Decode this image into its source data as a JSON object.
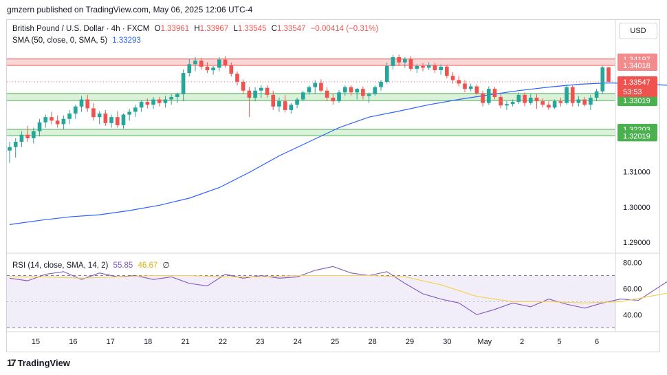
{
  "publisher_line": "gmzern published on TradingView.com, May 06, 2025 12:06 UTC-4",
  "legend": {
    "symbol": "British Pound / U.S. Dollar · 4h · FXCM",
    "o_label": "O",
    "o": "1.33961",
    "h_label": "H",
    "h": "1.33967",
    "l_label": "L",
    "l": "1.33545",
    "c_label": "C",
    "c": "1.33547",
    "change": "−0.00414 (−0.31%)",
    "sma_label": "SMA (50, close, 0, SMA, 5)",
    "sma_value": "1.33293",
    "rsi_label": "RSI (14, close, SMA, 14, 2)",
    "rsi_value": "55.85",
    "rsi_ma_value": "46.67",
    "rsi_extra": "∅"
  },
  "currency_button": "USD",
  "brand": "TradingView",
  "colors": {
    "up": "#26a69a",
    "down": "#ef5350",
    "sma": "#2962ff",
    "rsi": "#7e57c2",
    "rsi_ma": "#f7d046",
    "resistance_zone": "#f8c9c9",
    "support_zone": "#cfeccd"
  },
  "price_badges": {
    "resistance_top": "1.34197",
    "resistance_bottom": "1.34018",
    "current_price": "1.33547",
    "countdown": "53:53",
    "support_top": "1.33219",
    "support_bottom": "1.33019",
    "support2_top": "1.32203",
    "support2_bottom": "1.32019"
  },
  "chart_data": {
    "type": "candlestick",
    "ylim": [
      1.2865,
      1.347
    ],
    "y_ticks": [
      "1.31000",
      "1.30000",
      "1.29000"
    ],
    "y_tick_values": [
      1.31,
      1.3,
      1.29
    ],
    "x_tick_labels": [
      "15",
      "16",
      "17",
      "18",
      "21",
      "22",
      "23",
      "24",
      "25",
      "28",
      "29",
      "30",
      "May",
      "2",
      "5",
      "6"
    ],
    "zones": [
      {
        "from": 1.34018,
        "to": 1.34197,
        "color": "resistance"
      },
      {
        "from": 1.33019,
        "to": 1.33219,
        "color": "support"
      },
      {
        "from": 1.32019,
        "to": 1.32203,
        "color": "support"
      }
    ],
    "candles": [
      [
        1.316,
        1.3185,
        1.3125,
        1.317
      ],
      [
        1.317,
        1.3195,
        1.314,
        1.3185
      ],
      [
        1.3185,
        1.3215,
        1.317,
        1.3205
      ],
      [
        1.3205,
        1.323,
        1.3185,
        1.3195
      ],
      [
        1.3195,
        1.3225,
        1.318,
        1.3215
      ],
      [
        1.3215,
        1.325,
        1.32,
        1.324
      ],
      [
        1.324,
        1.3262,
        1.3225,
        1.3255
      ],
      [
        1.3255,
        1.327,
        1.3235,
        1.3245
      ],
      [
        1.3245,
        1.326,
        1.3225,
        1.3235
      ],
      [
        1.3235,
        1.326,
        1.322,
        1.325
      ],
      [
        1.325,
        1.3275,
        1.3235,
        1.3265
      ],
      [
        1.3265,
        1.329,
        1.325,
        1.3285
      ],
      [
        1.3285,
        1.3315,
        1.327,
        1.3305
      ],
      [
        1.3305,
        1.3318,
        1.327,
        1.328
      ],
      [
        1.328,
        1.3295,
        1.3245,
        1.3255
      ],
      [
        1.3255,
        1.3272,
        1.3235,
        1.3265
      ],
      [
        1.3265,
        1.3275,
        1.323,
        1.3238
      ],
      [
        1.3238,
        1.3262,
        1.3225,
        1.3255
      ],
      [
        1.3255,
        1.3272,
        1.3225,
        1.3232
      ],
      [
        1.3232,
        1.3265,
        1.3222,
        1.3262
      ],
      [
        1.3262,
        1.3278,
        1.3245,
        1.327
      ],
      [
        1.327,
        1.329,
        1.3255,
        1.3282
      ],
      [
        1.3282,
        1.3302,
        1.327,
        1.3298
      ],
      [
        1.3298,
        1.3308,
        1.328,
        1.329
      ],
      [
        1.329,
        1.3312,
        1.3278,
        1.3305
      ],
      [
        1.3305,
        1.3312,
        1.3285,
        1.3295
      ],
      [
        1.3295,
        1.3315,
        1.3282,
        1.3305
      ],
      [
        1.3305,
        1.332,
        1.329,
        1.3312
      ],
      [
        1.3312,
        1.3325,
        1.3295,
        1.332
      ],
      [
        1.332,
        1.339,
        1.33,
        1.338
      ],
      [
        1.338,
        1.342,
        1.337,
        1.3405
      ],
      [
        1.3405,
        1.3425,
        1.3385,
        1.3415
      ],
      [
        1.3415,
        1.3423,
        1.339,
        1.3398
      ],
      [
        1.3398,
        1.341,
        1.338,
        1.3388
      ],
      [
        1.3388,
        1.34,
        1.3375,
        1.3395
      ],
      [
        1.3395,
        1.3425,
        1.3385,
        1.3418
      ],
      [
        1.3418,
        1.3428,
        1.3395,
        1.3402
      ],
      [
        1.3402,
        1.341,
        1.337,
        1.3378
      ],
      [
        1.3378,
        1.3385,
        1.3345,
        1.3355
      ],
      [
        1.3355,
        1.3362,
        1.332,
        1.333
      ],
      [
        1.333,
        1.334,
        1.3255,
        1.331
      ],
      [
        1.331,
        1.334,
        1.33,
        1.333
      ],
      [
        1.333,
        1.3345,
        1.331,
        1.3338
      ],
      [
        1.3338,
        1.3345,
        1.331,
        1.3318
      ],
      [
        1.3318,
        1.333,
        1.3275,
        1.3285
      ],
      [
        1.3285,
        1.331,
        1.327,
        1.33
      ],
      [
        1.33,
        1.3318,
        1.3268,
        1.3275
      ],
      [
        1.3275,
        1.3295,
        1.3265,
        1.329
      ],
      [
        1.329,
        1.331,
        1.328,
        1.3305
      ],
      [
        1.3305,
        1.333,
        1.33,
        1.3325
      ],
      [
        1.3325,
        1.3345,
        1.3318,
        1.334
      ],
      [
        1.334,
        1.336,
        1.332,
        1.3352
      ],
      [
        1.3352,
        1.3362,
        1.3325,
        1.333
      ],
      [
        1.333,
        1.334,
        1.33,
        1.331
      ],
      [
        1.331,
        1.332,
        1.329,
        1.33
      ],
      [
        1.33,
        1.3332,
        1.3295,
        1.3325
      ],
      [
        1.3325,
        1.3345,
        1.3315,
        1.334
      ],
      [
        1.334,
        1.3345,
        1.3315,
        1.3325
      ],
      [
        1.3325,
        1.3338,
        1.3305,
        1.3335
      ],
      [
        1.3335,
        1.3342,
        1.3305,
        1.3315
      ],
      [
        1.3315,
        1.3325,
        1.3295,
        1.332
      ],
      [
        1.332,
        1.3345,
        1.3315,
        1.334
      ],
      [
        1.334,
        1.336,
        1.333,
        1.3355
      ],
      [
        1.3355,
        1.341,
        1.335,
        1.34
      ],
      [
        1.34,
        1.3432,
        1.339,
        1.3425
      ],
      [
        1.3425,
        1.3432,
        1.34,
        1.341
      ],
      [
        1.341,
        1.3425,
        1.3395,
        1.342
      ],
      [
        1.342,
        1.3428,
        1.3385,
        1.3392
      ],
      [
        1.3392,
        1.3405,
        1.338,
        1.34
      ],
      [
        1.34,
        1.3408,
        1.3385,
        1.3395
      ],
      [
        1.3395,
        1.341,
        1.3388,
        1.3402
      ],
      [
        1.3402,
        1.3408,
        1.338,
        1.3388
      ],
      [
        1.3388,
        1.3405,
        1.3375,
        1.3398
      ],
      [
        1.3398,
        1.3402,
        1.3365,
        1.3372
      ],
      [
        1.3372,
        1.3382,
        1.335,
        1.336
      ],
      [
        1.336,
        1.3372,
        1.3342,
        1.335
      ],
      [
        1.335,
        1.336,
        1.3325,
        1.3335
      ],
      [
        1.3335,
        1.335,
        1.3328,
        1.3342
      ],
      [
        1.3342,
        1.3348,
        1.3318,
        1.3322
      ],
      [
        1.3322,
        1.333,
        1.3285,
        1.3295
      ],
      [
        1.3295,
        1.3342,
        1.329,
        1.3335
      ],
      [
        1.3335,
        1.334,
        1.3305,
        1.3312
      ],
      [
        1.3312,
        1.332,
        1.328,
        1.3288
      ],
      [
        1.3288,
        1.33,
        1.3275,
        1.3292
      ],
      [
        1.3292,
        1.3305,
        1.3285,
        1.3298
      ],
      [
        1.3298,
        1.3325,
        1.3292,
        1.3318
      ],
      [
        1.3318,
        1.3325,
        1.3285,
        1.3295
      ],
      [
        1.3295,
        1.332,
        1.329,
        1.331
      ],
      [
        1.331,
        1.332,
        1.3278,
        1.33
      ],
      [
        1.33,
        1.3308,
        1.3282,
        1.329
      ],
      [
        1.329,
        1.33,
        1.3275,
        1.3282
      ],
      [
        1.3282,
        1.3305,
        1.3278,
        1.33
      ],
      [
        1.33,
        1.331,
        1.3285,
        1.3295
      ],
      [
        1.3295,
        1.3348,
        1.329,
        1.334
      ],
      [
        1.334,
        1.3345,
        1.3285,
        1.3295
      ],
      [
        1.3295,
        1.3315,
        1.3285,
        1.3305
      ],
      [
        1.3305,
        1.3312,
        1.3285,
        1.329
      ],
      [
        1.329,
        1.3318,
        1.3275,
        1.331
      ],
      [
        1.331,
        1.3335,
        1.33,
        1.3328
      ],
      [
        1.3328,
        1.34,
        1.332,
        1.3396
      ],
      [
        1.3396,
        1.3397,
        1.3355,
        1.3355
      ]
    ],
    "sma": [
      [
        0,
        1.295
      ],
      [
        5,
        1.2962
      ],
      [
        10,
        1.2972
      ],
      [
        15,
        1.2978
      ],
      [
        20,
        1.299
      ],
      [
        25,
        1.3005
      ],
      [
        30,
        1.3025
      ],
      [
        35,
        1.3055
      ],
      [
        40,
        1.3098
      ],
      [
        45,
        1.3145
      ],
      [
        50,
        1.3185
      ],
      [
        55,
        1.3225
      ],
      [
        60,
        1.3255
      ],
      [
        65,
        1.3272
      ],
      [
        70,
        1.329
      ],
      [
        75,
        1.3305
      ],
      [
        80,
        1.3318
      ],
      [
        85,
        1.333
      ],
      [
        90,
        1.334
      ],
      [
        95,
        1.3348
      ],
      [
        100,
        1.3352
      ],
      [
        105,
        1.335
      ],
      [
        110,
        1.3345
      ],
      [
        115,
        1.3342
      ],
      [
        118,
        1.3338
      ],
      [
        122,
        1.3338
      ],
      [
        125,
        1.3335
      ],
      [
        128,
        1.3332
      ],
      [
        131,
        1.3334
      ],
      [
        134,
        1.3336
      ]
    ],
    "rsi": {
      "ylim": [
        28,
        84
      ],
      "ticks": [
        80,
        60,
        40
      ],
      "band": [
        30,
        70
      ],
      "values": [
        [
          0,
          68
        ],
        [
          3,
          66
        ],
        [
          6,
          71
        ],
        [
          9,
          73
        ],
        [
          12,
          67
        ],
        [
          15,
          72
        ],
        [
          18,
          69
        ],
        [
          21,
          70
        ],
        [
          24,
          67
        ],
        [
          27,
          69
        ],
        [
          30,
          64
        ],
        [
          33,
          62
        ],
        [
          36,
          71
        ],
        [
          39,
          68
        ],
        [
          42,
          70
        ],
        [
          45,
          68
        ],
        [
          48,
          69
        ],
        [
          51,
          74
        ],
        [
          54,
          77
        ],
        [
          57,
          72
        ],
        [
          60,
          70
        ],
        [
          63,
          73
        ],
        [
          66,
          64
        ],
        [
          69,
          56
        ],
        [
          72,
          52
        ],
        [
          75,
          49
        ],
        [
          78,
          40
        ],
        [
          81,
          44
        ],
        [
          84,
          49
        ],
        [
          87,
          46
        ],
        [
          90,
          52
        ],
        [
          93,
          48
        ],
        [
          96,
          45
        ],
        [
          99,
          49
        ],
        [
          102,
          52
        ],
        [
          105,
          51
        ],
        [
          108,
          60
        ],
        [
          111,
          69
        ],
        [
          114,
          66
        ],
        [
          117,
          57
        ],
        [
          120,
          61
        ],
        [
          123,
          55
        ],
        [
          126,
          48
        ],
        [
          129,
          44
        ],
        [
          132,
          38
        ],
        [
          135,
          41
        ],
        [
          138,
          37
        ],
        [
          141,
          42
        ],
        [
          144,
          45
        ],
        [
          147,
          41
        ],
        [
          150,
          39
        ],
        [
          153,
          46
        ],
        [
          156,
          44
        ],
        [
          159,
          50
        ],
        [
          162,
          55
        ],
        [
          165,
          48
        ],
        [
          168,
          52
        ],
        [
          171,
          60
        ],
        [
          174,
          56
        ]
      ],
      "ma": [
        [
          0,
          69
        ],
        [
          6,
          69
        ],
        [
          12,
          68
        ],
        [
          18,
          69
        ],
        [
          24,
          70
        ],
        [
          30,
          70
        ],
        [
          36,
          69
        ],
        [
          42,
          69
        ],
        [
          48,
          70
        ],
        [
          54,
          70
        ],
        [
          60,
          70
        ],
        [
          66,
          69
        ],
        [
          72,
          63
        ],
        [
          78,
          54
        ],
        [
          84,
          50
        ],
        [
          90,
          50
        ],
        [
          96,
          49
        ],
        [
          102,
          50
        ],
        [
          108,
          55
        ],
        [
          114,
          60
        ],
        [
          120,
          62
        ],
        [
          126,
          58
        ],
        [
          132,
          52
        ],
        [
          138,
          46
        ],
        [
          144,
          42
        ],
        [
          150,
          40
        ],
        [
          156,
          41
        ],
        [
          162,
          43
        ],
        [
          168,
          45
        ],
        [
          174,
          47
        ]
      ]
    }
  }
}
